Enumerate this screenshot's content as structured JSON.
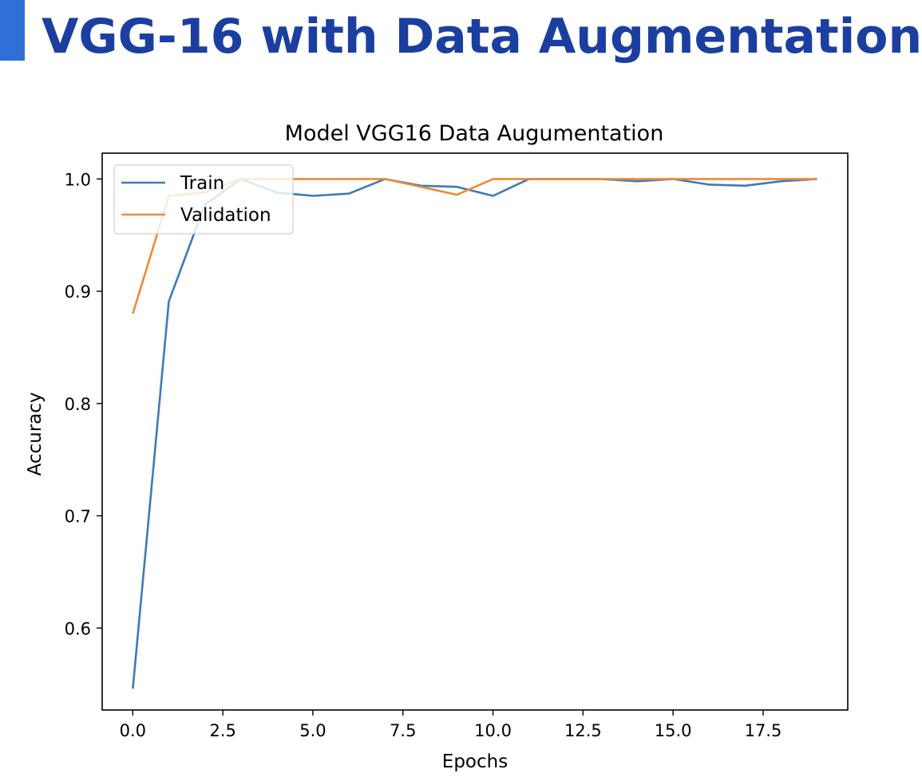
{
  "slide": {
    "title": "VGG-16 with Data Augmentation",
    "accent_color": "#2f6fd6",
    "title_color": "#1b3fa0"
  },
  "chart_data": {
    "type": "line",
    "title": "Model VGG16 Data Augumentation",
    "xlabel": "Epochs",
    "ylabel": "Accuracy",
    "xlim": [
      -0.85,
      19.85
    ],
    "ylim": [
      0.527,
      1.023
    ],
    "xticks": [
      0.0,
      2.5,
      5.0,
      7.5,
      10.0,
      12.5,
      15.0,
      17.5
    ],
    "xtick_labels": [
      "0.0",
      "2.5",
      "5.0",
      "7.5",
      "10.0",
      "12.5",
      "15.0",
      "17.5"
    ],
    "yticks": [
      0.6,
      0.7,
      0.8,
      0.9,
      1.0
    ],
    "ytick_labels": [
      "0.6",
      "0.7",
      "0.8",
      "0.9",
      "1.0"
    ],
    "grid": false,
    "legend_position": "upper-left",
    "x": [
      0,
      1,
      2,
      3,
      4,
      5,
      6,
      7,
      8,
      9,
      10,
      11,
      12,
      13,
      14,
      15,
      16,
      17,
      18,
      19
    ],
    "series": [
      {
        "name": "Train",
        "color": "#3d7ab8",
        "values": [
          0.546,
          0.891,
          0.977,
          1.0,
          0.988,
          0.985,
          0.987,
          1.0,
          0.994,
          0.993,
          0.985,
          1.0,
          1.0,
          1.0,
          0.998,
          1.0,
          0.995,
          0.994,
          0.998,
          1.0
        ]
      },
      {
        "name": "Validation",
        "color": "#ef8a35",
        "values": [
          0.88,
          0.985,
          0.988,
          1.0,
          1.0,
          1.0,
          1.0,
          1.0,
          0.993,
          0.986,
          1.0,
          1.0,
          1.0,
          1.0,
          1.0,
          1.0,
          1.0,
          1.0,
          1.0,
          1.0
        ]
      }
    ]
  }
}
